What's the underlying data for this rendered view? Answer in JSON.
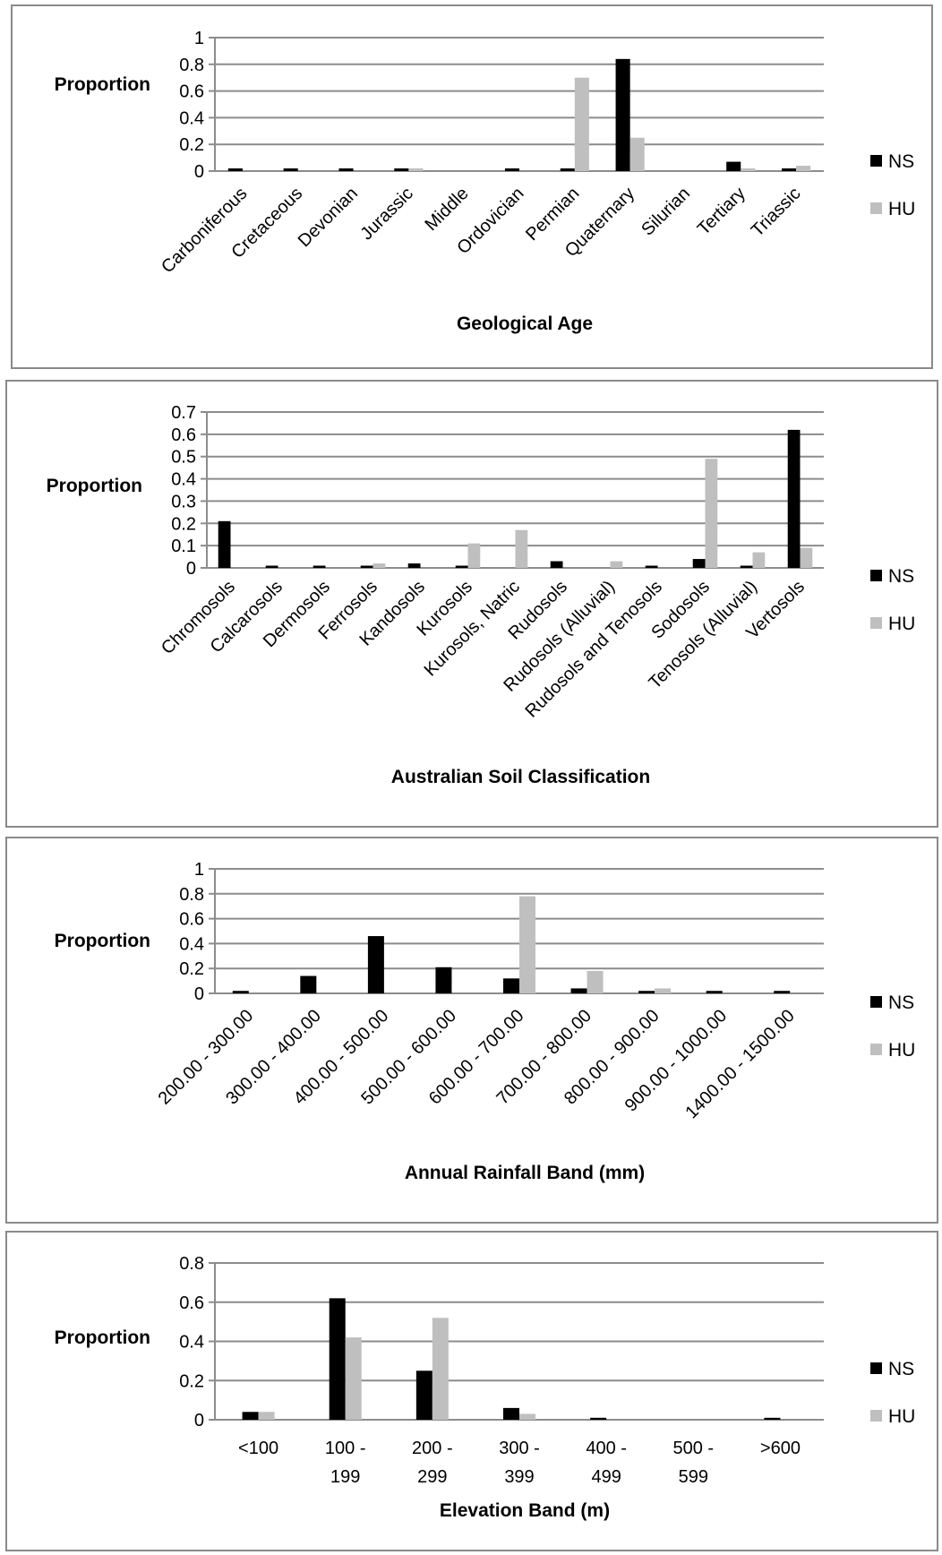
{
  "legend": {
    "ns_label": "NS",
    "hu_label": "HU"
  },
  "colors": {
    "ns": "#000000",
    "hu": "#bfbfbf",
    "grid": "#8c8c8c",
    "axis": "#8c8c8c",
    "border": "#8a8a8a"
  },
  "chart_data": [
    {
      "type": "bar",
      "title": "",
      "xlabel": "Geological Age",
      "ylabel": "Proportion",
      "ylim": [
        0,
        1
      ],
      "yticks": [
        "0",
        "0.2",
        "0.4",
        "0.6",
        "0.8",
        "1"
      ],
      "grid": true,
      "legend_position": "right",
      "categories": [
        "Carboniferous",
        "Cretaceous",
        "Devonian",
        "Jurassic",
        "Middle",
        "Ordovician",
        "Permian",
        "Quaternary",
        "Silurian",
        "Tertiary",
        "Triassic"
      ],
      "series": [
        {
          "name": "NS",
          "values": [
            0.02,
            0.02,
            0.02,
            0.02,
            0,
            0.02,
            0.02,
            0.84,
            0,
            0.07,
            0.02
          ]
        },
        {
          "name": "HU",
          "values": [
            0,
            0,
            0,
            0.02,
            0,
            0,
            0.7,
            0.25,
            0,
            0.02,
            0.04
          ]
        }
      ]
    },
    {
      "type": "bar",
      "title": "",
      "xlabel": "Australian Soil Classification",
      "ylabel": "Proportion",
      "ylim": [
        0,
        0.7
      ],
      "yticks": [
        "0",
        "0.1",
        "0.2",
        "0.3",
        "0.4",
        "0.5",
        "0.6",
        "0.7"
      ],
      "grid": true,
      "legend_position": "right",
      "categories": [
        "Chromosols",
        "Calcarosols",
        "Dermosols",
        "Ferrosols",
        "Kandosols",
        "Kurosols",
        "Kurosols, Natric",
        "Rudosols",
        "Rudosols (Alluvial)",
        "Rudosols and Tenosols",
        "Sodosols",
        "Tenosols (Alluvial)",
        "Vertosols"
      ],
      "series": [
        {
          "name": "NS",
          "values": [
            0.21,
            0.01,
            0.01,
            0.01,
            0.02,
            0.01,
            0,
            0.03,
            0,
            0.01,
            0.04,
            0.01,
            0.62
          ]
        },
        {
          "name": "HU",
          "values": [
            0,
            0,
            0,
            0.02,
            0,
            0.11,
            0.17,
            0,
            0.03,
            0,
            0.49,
            0.07,
            0.09
          ]
        }
      ]
    },
    {
      "type": "bar",
      "title": "",
      "xlabel": "Annual Rainfall Band (mm)",
      "ylabel": "Proportion",
      "ylim": [
        0,
        1
      ],
      "yticks": [
        "0",
        "0.2",
        "0.4",
        "0.6",
        "0.8",
        "1"
      ],
      "grid": true,
      "legend_position": "right",
      "categories": [
        "200.00 - 300.00",
        "300.00 - 400.00",
        "400.00 - 500.00",
        "500.00 - 600.00",
        "600.00 - 700.00",
        "700.00 - 800.00",
        "800.00 - 900.00",
        "900.00 - 1000.00",
        "1400.00 - 1500.00"
      ],
      "series": [
        {
          "name": "NS",
          "values": [
            0.02,
            0.14,
            0.46,
            0.21,
            0.12,
            0.04,
            0.02,
            0.02,
            0.02
          ]
        },
        {
          "name": "HU",
          "values": [
            0,
            0,
            0,
            0,
            0.78,
            0.18,
            0.04,
            0,
            0
          ]
        }
      ]
    },
    {
      "type": "bar",
      "title": "",
      "xlabel": "Elevation Band (m)",
      "ylabel": "Proportion",
      "ylim": [
        0,
        0.8
      ],
      "yticks": [
        "0",
        "0.2",
        "0.4",
        "0.6",
        "0.8"
      ],
      "grid": true,
      "legend_position": "right",
      "categories": [
        "<100",
        "100 -\n199",
        "200 -\n299",
        "300 -\n399",
        "400 -\n499",
        "500 -\n599",
        ">600"
      ],
      "series": [
        {
          "name": "NS",
          "values": [
            0.04,
            0.62,
            0.25,
            0.06,
            0.01,
            0,
            0.01
          ]
        },
        {
          "name": "HU",
          "values": [
            0.04,
            0.42,
            0.52,
            0.03,
            0,
            0,
            0
          ]
        }
      ]
    }
  ]
}
